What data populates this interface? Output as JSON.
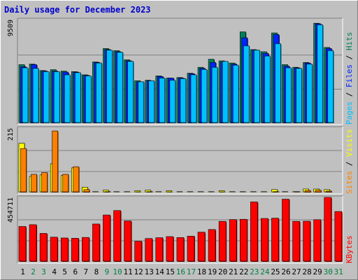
{
  "title": "Daily usage for December 2023",
  "colors": {
    "hits": "#00805c",
    "files": "#0024ff",
    "pages": "#00c0ff",
    "visits": "#ffff00",
    "sites": "#ff8000",
    "kbytes": "#ff0000",
    "weekend_day": "#008040",
    "weekday_day": "#000000",
    "panel_bg": "#c0c0c0"
  },
  "chart_data": {
    "type": "bar",
    "title": "Daily usage for December 2023",
    "categories": [
      "1",
      "2",
      "3",
      "4",
      "5",
      "6",
      "7",
      "8",
      "9",
      "10",
      "11",
      "12",
      "13",
      "14",
      "15",
      "16",
      "17",
      "18",
      "19",
      "20",
      "21",
      "22",
      "23",
      "24",
      "25",
      "26",
      "27",
      "28",
      "29",
      "30",
      "31"
    ],
    "weekend_days": [
      "2",
      "3",
      "9",
      "10",
      "16",
      "17",
      "23",
      "24",
      "30",
      "31"
    ],
    "panels": [
      {
        "id": "requests",
        "ymax_label": "9509",
        "ymax": 9509,
        "legend": [
          "Pages",
          "Files",
          "Hits"
        ],
        "series": [
          {
            "name": "Hits",
            "values": [
              5450,
              5500,
              4900,
              4980,
              4850,
              4800,
              4500,
              5700,
              6950,
              6750,
              5900,
              3950,
              4000,
              4400,
              4200,
              4250,
              4650,
              5200,
              5950,
              5800,
              5600,
              8500,
              6850,
              6650,
              8400,
              5450,
              5200,
              5650,
              9300,
              7050,
              0
            ]
          },
          {
            "name": "Files",
            "values": [
              5250,
              5450,
              4850,
              4850,
              4750,
              4750,
              4450,
              5650,
              6850,
              6650,
              5800,
              3850,
              3950,
              4350,
              4200,
              4200,
              4600,
              5100,
              5650,
              5700,
              5500,
              7950,
              6800,
              6500,
              8250,
              5300,
              5150,
              5600,
              9250,
              6950,
              0
            ]
          },
          {
            "name": "Pages",
            "values": [
              5150,
              5100,
              4800,
              4800,
              4500,
              4700,
              4400,
              5600,
              6800,
              6600,
              5750,
              3850,
              3950,
              4200,
              4000,
              4150,
              4500,
              5000,
              5200,
              5750,
              5400,
              7200,
              6800,
              6250,
              7400,
              5150,
              5100,
              5500,
              9150,
              6750,
              0
            ]
          }
        ]
      },
      {
        "id": "visitors",
        "ymax_label": "215",
        "ymax": 215,
        "legend": [
          "Sites",
          "Visits"
        ],
        "series": [
          {
            "name": "Visits",
            "values": [
              168,
              55,
              60,
              98,
              58,
              84,
              18,
              3,
              8,
              3,
              3,
              6,
              8,
              3,
              6,
              3,
              3,
              3,
              3,
              6,
              3,
              3,
              3,
              3,
              10,
              3,
              3,
              12,
              12,
              10,
              0
            ]
          },
          {
            "name": "Sites",
            "values": [
              150,
              62,
              68,
              210,
              62,
              88,
              10,
              2,
              3,
              2,
              2,
              2,
              3,
              2,
              2,
              2,
              2,
              2,
              2,
              2,
              2,
              2,
              2,
              2,
              3,
              2,
              3,
              7,
              8,
              5,
              0
            ]
          }
        ]
      },
      {
        "id": "kbytes",
        "ymax_label": "454711",
        "ymax": 454711,
        "legend": [
          "KBytes"
        ],
        "series": [
          {
            "name": "KBytes",
            "values": [
              255000,
              268000,
              205000,
              178000,
              172000,
              170000,
              176000,
              273000,
              338000,
              370000,
              295000,
              148000,
              168000,
              174000,
              182000,
              175000,
              185000,
              214000,
              233000,
              292000,
              305000,
              307000,
              432000,
              313000,
              315000,
              452000,
              292000,
              293000,
              304000,
              465000,
              363000
            ]
          }
        ]
      }
    ]
  }
}
